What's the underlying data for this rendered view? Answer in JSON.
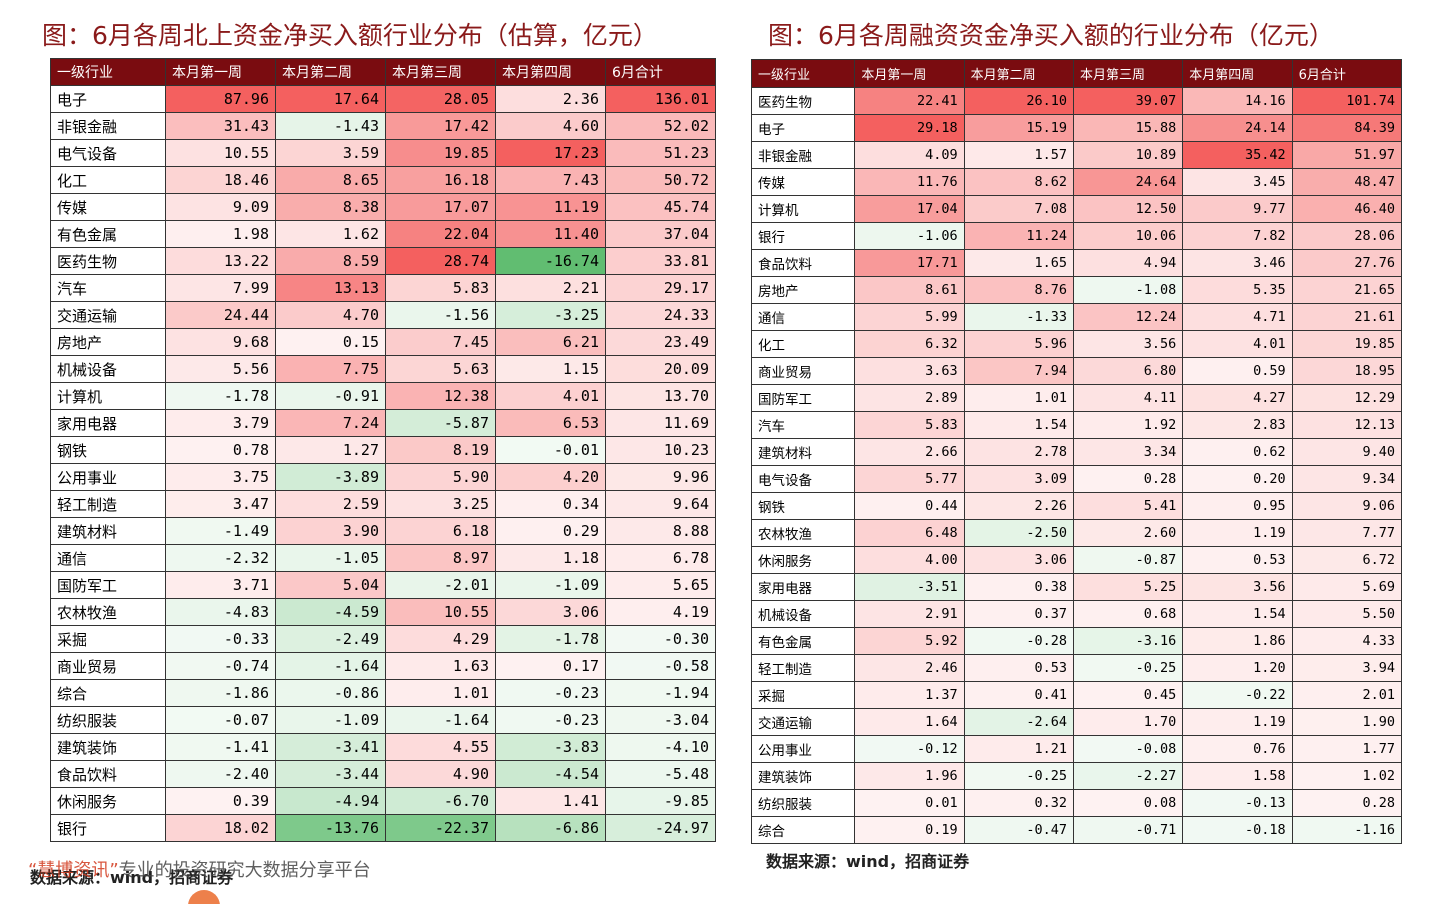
{
  "left": {
    "title": "图：6月各周北上资金净买入额行业分布（估算，亿元）",
    "headers": [
      "一级行业",
      "本月第一周",
      "本月第二周",
      "本月第三周",
      "本月第四周",
      "6月合计"
    ],
    "rows": [
      [
        "电子",
        "87.96",
        "17.64",
        "28.05",
        "2.36",
        "136.01"
      ],
      [
        "非银金融",
        "31.43",
        "-1.43",
        "17.42",
        "4.60",
        "52.02"
      ],
      [
        "电气设备",
        "10.55",
        "3.59",
        "19.85",
        "17.23",
        "51.23"
      ],
      [
        "化工",
        "18.46",
        "8.65",
        "16.18",
        "7.43",
        "50.72"
      ],
      [
        "传媒",
        "9.09",
        "8.38",
        "17.07",
        "11.19",
        "45.74"
      ],
      [
        "有色金属",
        "1.98",
        "1.62",
        "22.04",
        "11.40",
        "37.04"
      ],
      [
        "医药生物",
        "13.22",
        "8.59",
        "28.74",
        "-16.74",
        "33.81"
      ],
      [
        "汽车",
        "7.99",
        "13.13",
        "5.83",
        "2.21",
        "29.17"
      ],
      [
        "交通运输",
        "24.44",
        "4.70",
        "-1.56",
        "-3.25",
        "24.33"
      ],
      [
        "房地产",
        "9.68",
        "0.15",
        "7.45",
        "6.21",
        "23.49"
      ],
      [
        "机械设备",
        "5.56",
        "7.75",
        "5.63",
        "1.15",
        "20.09"
      ],
      [
        "计算机",
        "-1.78",
        "-0.91",
        "12.38",
        "4.01",
        "13.70"
      ],
      [
        "家用电器",
        "3.79",
        "7.24",
        "-5.87",
        "6.53",
        "11.69"
      ],
      [
        "钢铁",
        "0.78",
        "1.27",
        "8.19",
        "-0.01",
        "10.23"
      ],
      [
        "公用事业",
        "3.75",
        "-3.89",
        "5.90",
        "4.20",
        "9.96"
      ],
      [
        "轻工制造",
        "3.47",
        "2.59",
        "3.25",
        "0.34",
        "9.64"
      ],
      [
        "建筑材料",
        "-1.49",
        "3.90",
        "6.18",
        "0.29",
        "8.88"
      ],
      [
        "通信",
        "-2.32",
        "-1.05",
        "8.97",
        "1.18",
        "6.78"
      ],
      [
        "国防军工",
        "3.71",
        "5.04",
        "-2.01",
        "-1.09",
        "5.65"
      ],
      [
        "农林牧渔",
        "-4.83",
        "-4.59",
        "10.55",
        "3.06",
        "4.19"
      ],
      [
        "采掘",
        "-0.33",
        "-2.49",
        "4.29",
        "-1.78",
        "-0.30"
      ],
      [
        "商业贸易",
        "-0.74",
        "-1.64",
        "1.63",
        "0.17",
        "-0.58"
      ],
      [
        "综合",
        "-1.86",
        "-0.86",
        "1.01",
        "-0.23",
        "-1.94"
      ],
      [
        "纺织服装",
        "-0.07",
        "-1.09",
        "-1.64",
        "-0.23",
        "-3.04"
      ],
      [
        "建筑装饰",
        "-1.41",
        "-3.41",
        "4.55",
        "-3.83",
        "-4.10"
      ],
      [
        "食品饮料",
        "-2.40",
        "-3.44",
        "4.90",
        "-4.54",
        "-5.48"
      ],
      [
        "休闲服务",
        "0.39",
        "-4.94",
        "-6.70",
        "1.41",
        "-9.85"
      ],
      [
        "银行",
        "18.02",
        "-13.76",
        "-22.37",
        "-6.86",
        "-24.97"
      ]
    ],
    "source": "数据来源：wind，招商证券"
  },
  "right": {
    "title": "图：6月各周融资资金净买入额的行业分布（亿元）",
    "headers": [
      "一级行业",
      "本月第一周",
      "本月第二周",
      "本月第三周",
      "本月第四周",
      "6月合计"
    ],
    "rows": [
      [
        "医药生物",
        "22.41",
        "26.10",
        "39.07",
        "14.16",
        "101.74"
      ],
      [
        "电子",
        "29.18",
        "15.19",
        "15.88",
        "24.14",
        "84.39"
      ],
      [
        "非银金融",
        "4.09",
        "1.57",
        "10.89",
        "35.42",
        "51.97"
      ],
      [
        "传媒",
        "11.76",
        "8.62",
        "24.64",
        "3.45",
        "48.47"
      ],
      [
        "计算机",
        "17.04",
        "7.08",
        "12.50",
        "9.77",
        "46.40"
      ],
      [
        "银行",
        "-1.06",
        "11.24",
        "10.06",
        "7.82",
        "28.06"
      ],
      [
        "食品饮料",
        "17.71",
        "1.65",
        "4.94",
        "3.46",
        "27.76"
      ],
      [
        "房地产",
        "8.61",
        "8.76",
        "-1.08",
        "5.35",
        "21.65"
      ],
      [
        "通信",
        "5.99",
        "-1.33",
        "12.24",
        "4.71",
        "21.61"
      ],
      [
        "化工",
        "6.32",
        "5.96",
        "3.56",
        "4.01",
        "19.85"
      ],
      [
        "商业贸易",
        "3.63",
        "7.94",
        "6.80",
        "0.59",
        "18.95"
      ],
      [
        "国防军工",
        "2.89",
        "1.01",
        "4.11",
        "4.27",
        "12.29"
      ],
      [
        "汽车",
        "5.83",
        "1.54",
        "1.92",
        "2.83",
        "12.13"
      ],
      [
        "建筑材料",
        "2.66",
        "2.78",
        "3.34",
        "0.62",
        "9.40"
      ],
      [
        "电气设备",
        "5.77",
        "3.09",
        "0.28",
        "0.20",
        "9.34"
      ],
      [
        "钢铁",
        "0.44",
        "2.26",
        "5.41",
        "0.95",
        "9.06"
      ],
      [
        "农林牧渔",
        "6.48",
        "-2.50",
        "2.60",
        "1.19",
        "7.77"
      ],
      [
        "休闲服务",
        "4.00",
        "3.06",
        "-0.87",
        "0.53",
        "6.72"
      ],
      [
        "家用电器",
        "-3.51",
        "0.38",
        "5.25",
        "3.56",
        "5.69"
      ],
      [
        "机械设备",
        "2.91",
        "0.37",
        "0.68",
        "1.54",
        "5.50"
      ],
      [
        "有色金属",
        "5.92",
        "-0.28",
        "-3.16",
        "1.86",
        "4.33"
      ],
      [
        "轻工制造",
        "2.46",
        "0.53",
        "-0.25",
        "1.20",
        "3.94"
      ],
      [
        "采掘",
        "1.37",
        "0.41",
        "0.45",
        "-0.22",
        "2.01"
      ],
      [
        "交通运输",
        "1.64",
        "-2.64",
        "1.70",
        "1.19",
        "1.90"
      ],
      [
        "公用事业",
        "-0.12",
        "1.21",
        "-0.08",
        "0.76",
        "1.77"
      ],
      [
        "建筑装饰",
        "1.96",
        "-0.25",
        "-2.27",
        "1.58",
        "1.02"
      ],
      [
        "纺织服装",
        "0.01",
        "0.32",
        "0.08",
        "-0.13",
        "0.28"
      ],
      [
        "综合",
        "0.19",
        "-0.47",
        "-0.71",
        "-0.18",
        "-1.16"
      ]
    ],
    "source": "数据来源：wind，招商证券"
  },
  "watermark": {
    "brand": "“慧博资讯”",
    "text": "专业的投资研究大数据分享平台"
  },
  "colors": {
    "header_bg": "#7a0c10",
    "title_color": "#8a1a1a",
    "positive_max": "#f4605f",
    "negative_max": "#5dbb6d"
  }
}
